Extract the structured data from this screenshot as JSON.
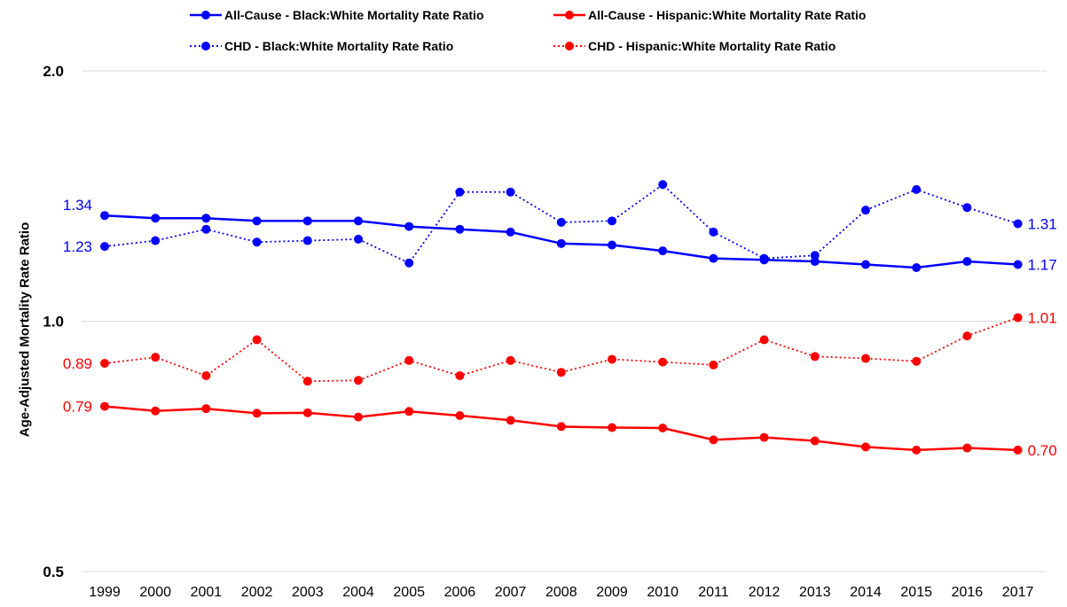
{
  "chart_data": {
    "type": "line",
    "title": "",
    "xlabel": "",
    "ylabel": "Age-Adjusted Mortality Rate Ratio",
    "y_scale": "log",
    "ylim": [
      0.5,
      2.0
    ],
    "y_ticks": [
      "0.5",
      "1.0",
      "2.0"
    ],
    "grid": true,
    "legend_position": "top",
    "categories": [
      "1999",
      "2000",
      "2001",
      "2002",
      "2003",
      "2004",
      "2005",
      "2006",
      "2007",
      "2008",
      "2009",
      "2010",
      "2011",
      "2012",
      "2013",
      "2014",
      "2015",
      "2016",
      "2017"
    ],
    "series": [
      {
        "name": "All-Cause - Black:White Mortality Rate Ratio",
        "color": "#0000ff",
        "style": "solid",
        "values": [
          1.34,
          1.33,
          1.33,
          1.32,
          1.32,
          1.32,
          1.3,
          1.29,
          1.28,
          1.24,
          1.235,
          1.215,
          1.19,
          1.185,
          1.18,
          1.17,
          1.16,
          1.18,
          1.17
        ],
        "start_label": "1.34",
        "end_label": "1.17"
      },
      {
        "name": "All-Cause - Hispanic:White Mortality Rate Ratio",
        "color": "#ff0000",
        "style": "solid",
        "values": [
          0.79,
          0.78,
          0.785,
          0.775,
          0.776,
          0.767,
          0.779,
          0.77,
          0.76,
          0.747,
          0.745,
          0.744,
          0.72,
          0.725,
          0.718,
          0.706,
          0.7,
          0.704,
          0.7
        ],
        "start_label": "0.79",
        "end_label": "0.70"
      },
      {
        "name": "CHD - Black:White Mortality Rate Ratio",
        "color": "#0000ff",
        "style": "dotted",
        "values": [
          1.23,
          1.25,
          1.29,
          1.245,
          1.25,
          1.255,
          1.175,
          1.43,
          1.43,
          1.315,
          1.32,
          1.46,
          1.28,
          1.19,
          1.2,
          1.36,
          1.44,
          1.37,
          1.31
        ],
        "start_label": "1.23",
        "end_label": "1.31"
      },
      {
        "name": "CHD - Hispanic:White Mortality Rate Ratio",
        "color": "#ff0000",
        "style": "dotted",
        "values": [
          0.89,
          0.905,
          0.86,
          0.95,
          0.847,
          0.849,
          0.897,
          0.86,
          0.897,
          0.868,
          0.9,
          0.893,
          0.886,
          0.95,
          0.907,
          0.902,
          0.895,
          0.96,
          1.01
        ],
        "start_label": "0.89",
        "end_label": "1.01"
      }
    ]
  }
}
